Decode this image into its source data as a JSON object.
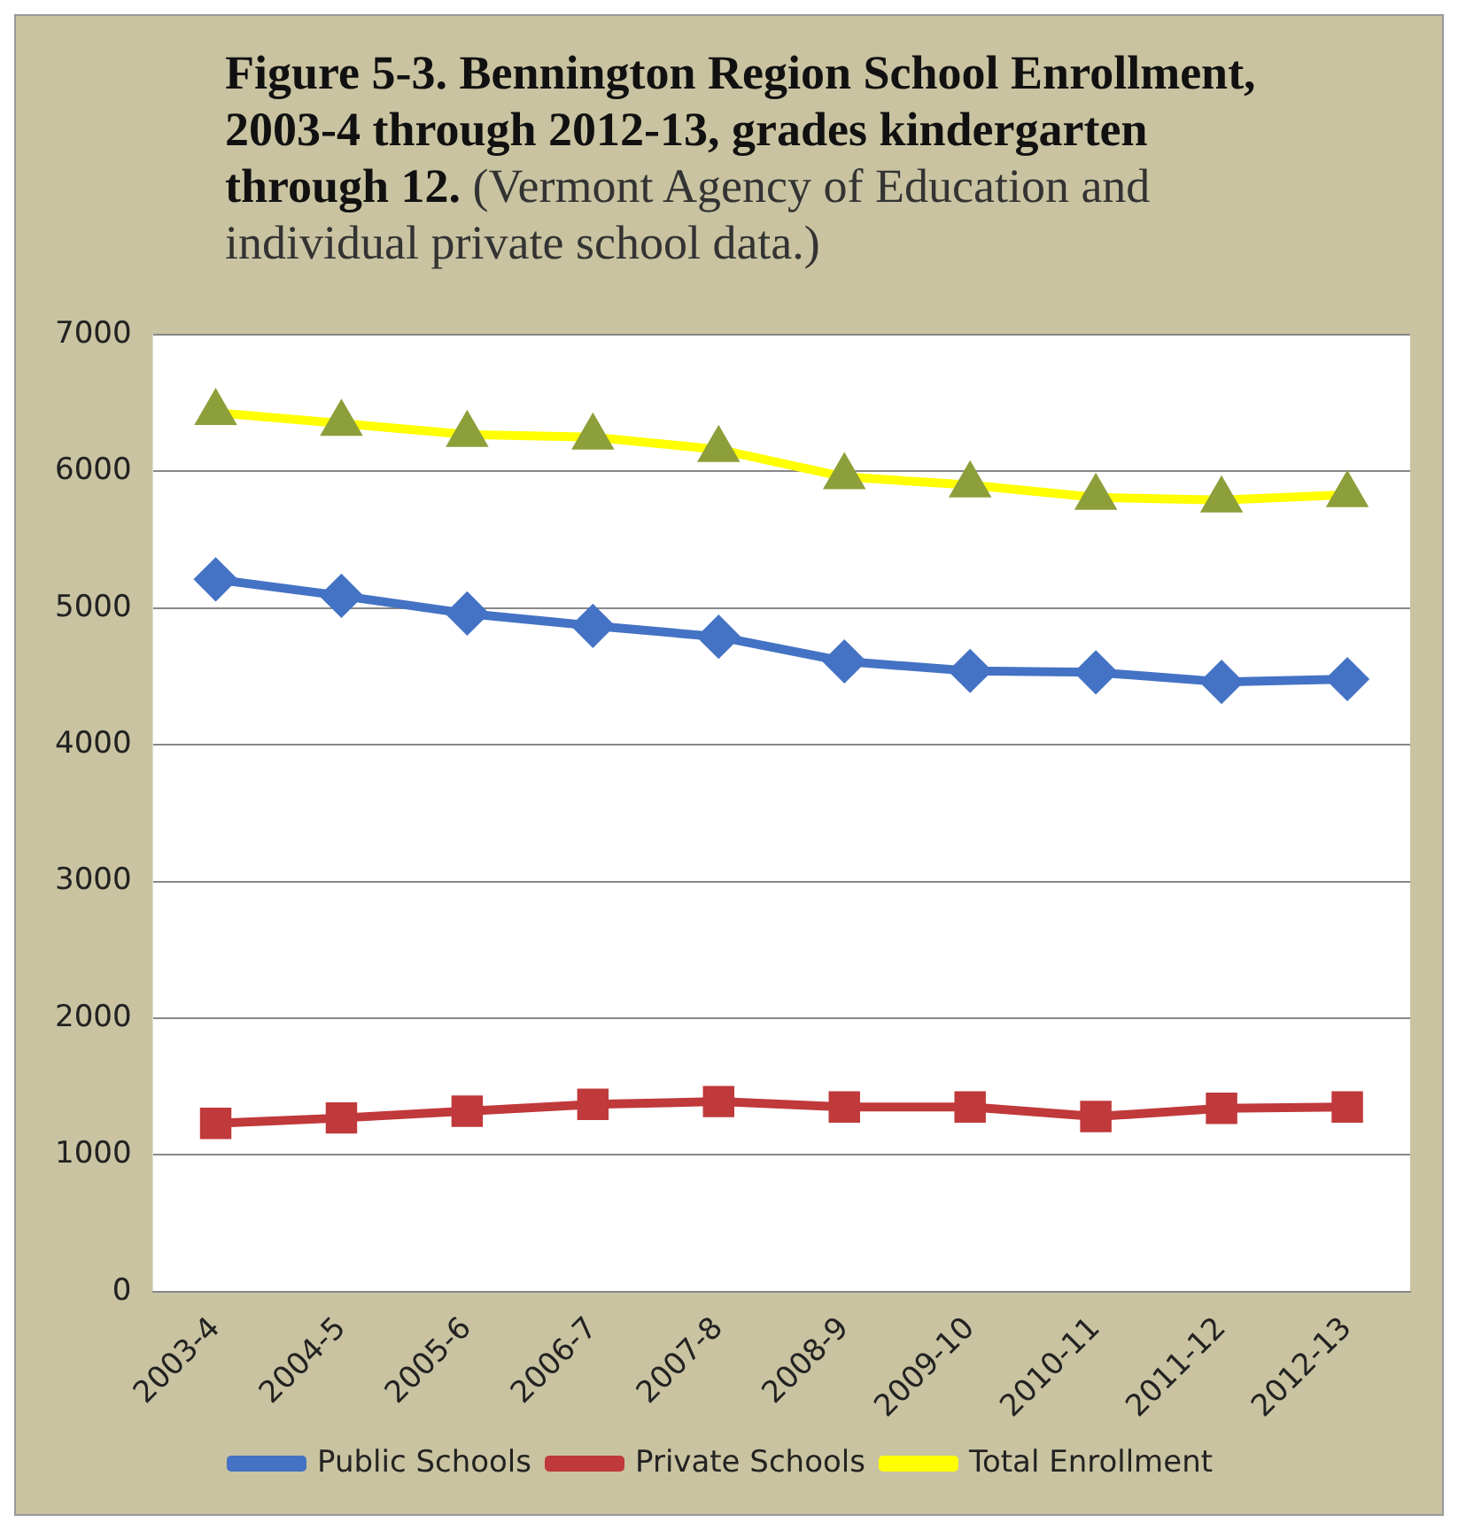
{
  "chart_data": {
    "type": "line",
    "title": "Figure 5-3.  Bennington Region School Enrollment, 2003-4 through 2012-13, grades kindergarten through 12.",
    "subtitle": "(Vermont Agency of Education and individual private school data.)",
    "categories": [
      "2003-4",
      "2004-5",
      "2005-6",
      "2006-7",
      "2007-8",
      "2008-9",
      "2009-10",
      "2010-11",
      "2011-12",
      "2012-13"
    ],
    "series": [
      {
        "name": "Public Schools",
        "color": "#4472c4",
        "marker": "diamond",
        "values": [
          5210,
          5090,
          4960,
          4870,
          4790,
          4610,
          4540,
          4530,
          4460,
          4480
        ]
      },
      {
        "name": "Private Schools",
        "color": "#c0393b",
        "marker": "square",
        "values": [
          1230,
          1270,
          1320,
          1370,
          1390,
          1350,
          1350,
          1280,
          1340,
          1350
        ]
      },
      {
        "name": "Total Enrollment",
        "color": "#ffff00",
        "marker": "triangle",
        "colors": [
          "#8c9f3a",
          "#8c9f3a",
          "#8c9f3a",
          "#8c9f3a",
          "#8c9f3a",
          "#8c9f3a",
          "#8c9f3a",
          "#8c9f3a",
          "#8c9f3a",
          "#8c9f3a"
        ],
        "values": [
          6430,
          6350,
          6270,
          6250,
          6160,
          5960,
          5900,
          5810,
          5790,
          5830
        ]
      }
    ],
    "ylim": [
      0,
      7000
    ],
    "yticks": [
      0,
      1000,
      2000,
      3000,
      4000,
      5000,
      6000,
      7000
    ],
    "grid": "y",
    "legend": "bottom"
  }
}
